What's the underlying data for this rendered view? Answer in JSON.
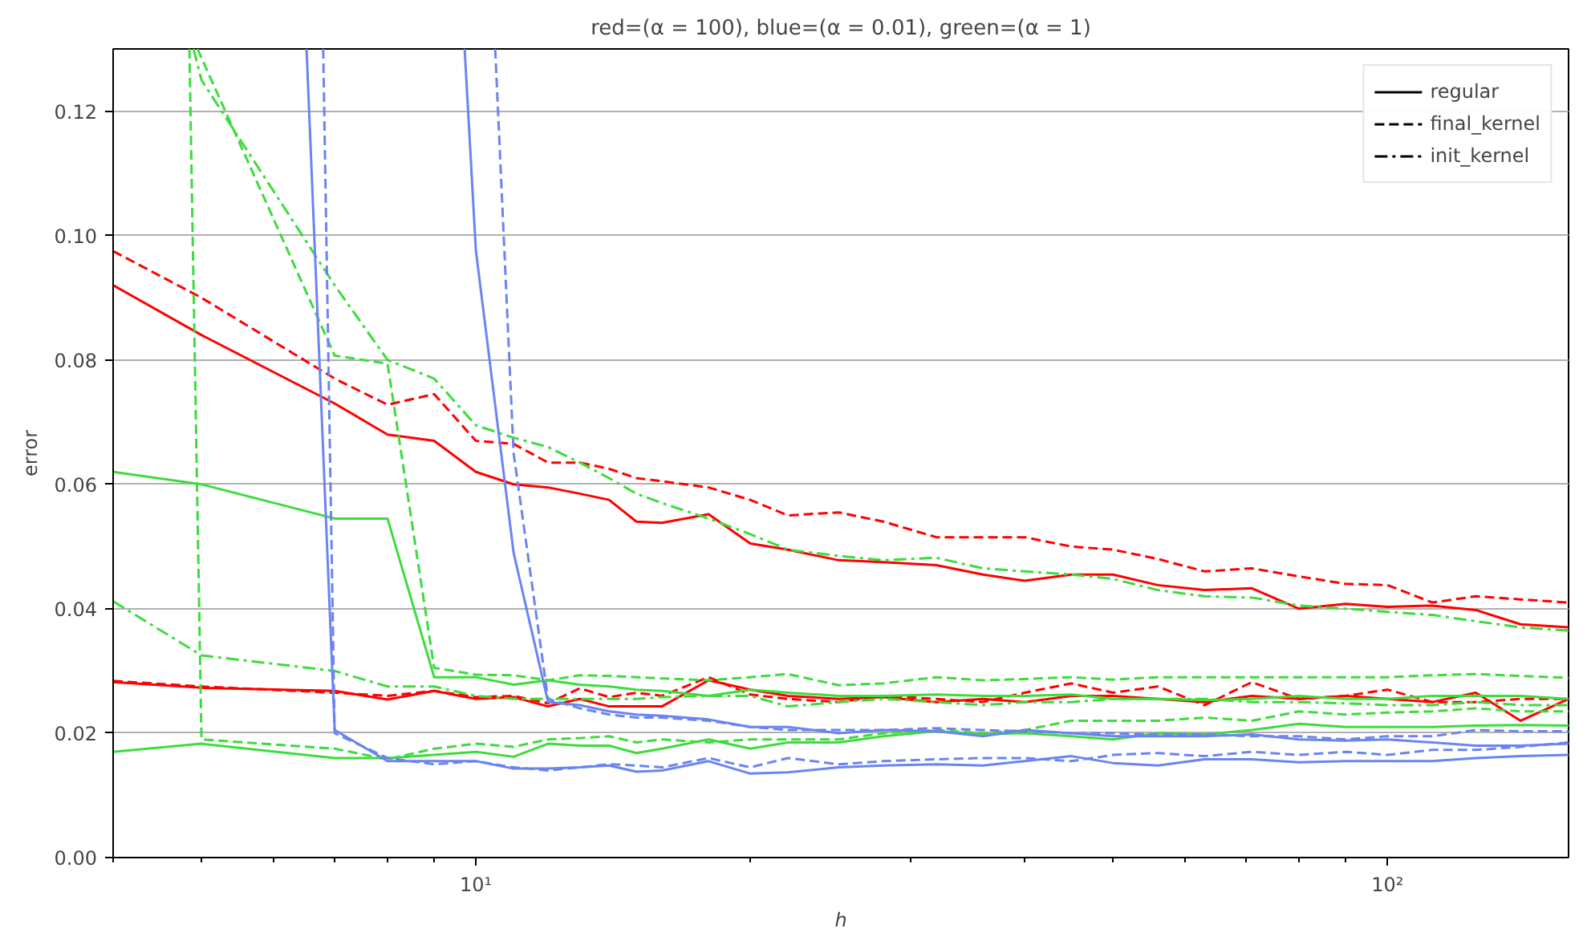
{
  "chart_data": {
    "type": "line",
    "title": "red=(α = 100), blue=(α = 0.01), green=(α = 1)",
    "xlabel": "h",
    "ylabel": "error",
    "log": "x",
    "grid": "y",
    "legend": "top right",
    "xlim": [
      4,
      158
    ],
    "ylim": [
      0,
      0.13
    ],
    "xticks": [
      {
        "value": 4,
        "label": null
      },
      {
        "value": 5,
        "label": null
      },
      {
        "value": 6,
        "label": null
      },
      {
        "value": 7,
        "label": null
      },
      {
        "value": 8,
        "label": null
      },
      {
        "value": 9,
        "label": null
      },
      {
        "value": 10,
        "label": "10¹"
      },
      {
        "value": 20,
        "label": null
      },
      {
        "value": 30,
        "label": null
      },
      {
        "value": 40,
        "label": null
      },
      {
        "value": 50,
        "label": null
      },
      {
        "value": 60,
        "label": null
      },
      {
        "value": 70,
        "label": null
      },
      {
        "value": 80,
        "label": null
      },
      {
        "value": 90,
        "label": null
      },
      {
        "value": 100,
        "label": "10²"
      }
    ],
    "yticks": [
      {
        "value": 0,
        "label": "0.00"
      },
      {
        "value": 0.02,
        "label": "0.02"
      },
      {
        "value": 0.04,
        "label": "0.04"
      },
      {
        "value": 0.06,
        "label": "0.06"
      },
      {
        "value": 0.08,
        "label": "0.08"
      },
      {
        "value": 0.1,
        "label": "0.10"
      },
      {
        "value": 0.12,
        "label": "0.12"
      }
    ],
    "x": [
      4,
      5,
      7,
      8,
      9,
      10,
      11,
      12,
      13,
      14,
      15,
      16,
      18,
      20,
      22,
      25,
      28,
      32,
      36,
      40,
      45,
      50,
      56,
      63,
      71,
      80,
      90,
      100,
      112,
      125,
      140,
      158
    ],
    "series": [
      {
        "color": "#ff0000",
        "line_style": "solid",
        "values": [
          0.092,
          0.084,
          0.073,
          0.068,
          0.067,
          0.062,
          0.06,
          0.0595,
          0.0585,
          0.0575,
          0.054,
          0.0538,
          0.0552,
          0.0505,
          0.0495,
          0.0478,
          0.0475,
          0.047,
          0.0455,
          0.0445,
          0.0455,
          0.0455,
          0.0438,
          0.043,
          0.0433,
          0.04,
          0.0408,
          0.0403,
          0.0405,
          0.0398,
          0.0375,
          0.037
        ]
      },
      {
        "color": "#ff0000",
        "line_style": "dashed",
        "values": [
          0.0975,
          0.09,
          0.077,
          0.0728,
          0.0745,
          0.067,
          0.0665,
          0.0635,
          0.0635,
          0.0625,
          0.061,
          0.0605,
          0.0595,
          0.0575,
          0.055,
          0.0555,
          0.054,
          0.0515,
          0.0515,
          0.0515,
          0.05,
          0.0495,
          0.048,
          0.046,
          0.0465,
          0.0452,
          0.044,
          0.0438,
          0.041,
          0.042,
          0.0415,
          0.041
        ]
      },
      {
        "color": "#ff0000",
        "line_style": "solid",
        "values": [
          0.0282,
          0.0273,
          0.0268,
          0.0254,
          0.0268,
          0.0255,
          0.0258,
          0.0243,
          0.0255,
          0.0243,
          0.0243,
          0.0243,
          0.0285,
          0.027,
          0.026,
          0.0255,
          0.0258,
          0.025,
          0.0255,
          0.025,
          0.026,
          0.026,
          0.0255,
          0.025,
          0.026,
          0.0255,
          0.026,
          0.0255,
          0.025,
          0.0265,
          0.022,
          0.0255
        ]
      },
      {
        "color": "#ff0000",
        "line_style": "dashed",
        "values": [
          0.0284,
          0.0275,
          0.0265,
          0.026,
          0.0268,
          0.0258,
          0.026,
          0.0248,
          0.0272,
          0.0258,
          0.0265,
          0.026,
          0.029,
          0.0262,
          0.0255,
          0.025,
          0.026,
          0.0255,
          0.025,
          0.0265,
          0.028,
          0.0265,
          0.0275,
          0.0245,
          0.0282,
          0.0255,
          0.026,
          0.027,
          0.025,
          0.025,
          0.0255,
          0.0255
        ]
      },
      {
        "color": "#3ddc3d",
        "line_style": "solid",
        "values": [
          0.062,
          0.06,
          0.0545,
          0.0545,
          0.029,
          0.029,
          0.0278,
          0.0285,
          0.0278,
          0.0275,
          0.027,
          0.0268,
          0.026,
          0.027,
          0.0265,
          0.026,
          0.026,
          0.0262,
          0.026,
          0.026,
          0.0262,
          0.0255,
          0.0255,
          0.0253,
          0.0255,
          0.026,
          0.0255,
          0.0255,
          0.026,
          0.026,
          0.026,
          0.0255
        ]
      },
      {
        "color": "#3ddc3d",
        "line_style": "solid",
        "values": [
          0.017,
          0.0183,
          0.016,
          0.016,
          0.0165,
          0.017,
          0.0162,
          0.0183,
          0.018,
          0.018,
          0.0168,
          0.0175,
          0.019,
          0.0175,
          0.0185,
          0.0185,
          0.0195,
          0.0203,
          0.0198,
          0.02,
          0.0195,
          0.019,
          0.02,
          0.0198,
          0.0205,
          0.0215,
          0.021,
          0.021,
          0.021,
          0.0212,
          0.0213,
          0.0212
        ]
      },
      {
        "color": "#3ddc3d",
        "line_style": "dashdot",
        "values": [
          0.0412,
          0.0325,
          0.03,
          0.0275,
          0.0275,
          0.026,
          0.0255,
          0.0255,
          0.0255,
          0.0255,
          0.0255,
          0.0258,
          0.026,
          0.026,
          0.0243,
          0.025,
          0.0255,
          0.025,
          0.0245,
          0.025,
          0.025,
          0.0255,
          0.0255,
          0.0255,
          0.025,
          0.025,
          0.0248,
          0.0245,
          0.0245,
          0.025,
          0.0245,
          0.0245
        ]
      },
      {
        "color": "#3ddc3d",
        "line_style": "dashdot",
        "x": [
          4.9,
          5,
          7,
          8,
          9,
          10,
          11,
          12,
          13,
          14,
          15,
          16,
          18,
          20,
          22,
          25,
          28,
          32,
          36,
          40,
          45,
          50,
          56,
          63,
          71,
          80,
          90,
          100,
          112,
          125,
          140,
          158
        ],
        "values": [
          0.13,
          0.125,
          0.092,
          0.08,
          0.077,
          0.0695,
          0.0675,
          0.066,
          0.0635,
          0.061,
          0.0585,
          0.057,
          0.0545,
          0.052,
          0.0495,
          0.0485,
          0.0478,
          0.0482,
          0.0465,
          0.046,
          0.0455,
          0.0448,
          0.043,
          0.042,
          0.0418,
          0.0405,
          0.04,
          0.0395,
          0.039,
          0.038,
          0.037,
          0.0365
        ]
      },
      {
        "color": "#3ddc3d",
        "line_style": "dashed",
        "x": [
          4.85,
          5,
          7,
          8,
          9,
          10,
          11,
          12,
          13,
          14,
          15,
          16,
          18,
          20,
          22,
          25,
          28,
          32,
          36,
          40,
          45,
          50,
          56,
          63,
          71,
          80,
          90,
          100,
          112,
          125,
          140,
          158
        ],
        "values": [
          0.13,
          0.019,
          0.0175,
          0.0158,
          0.0175,
          0.0183,
          0.0178,
          0.019,
          0.0192,
          0.0195,
          0.0185,
          0.019,
          0.0185,
          0.019,
          0.019,
          0.019,
          0.02,
          0.0205,
          0.02,
          0.0205,
          0.022,
          0.022,
          0.022,
          0.0225,
          0.022,
          0.0235,
          0.023,
          0.0233,
          0.0235,
          0.024,
          0.0235,
          0.0235
        ]
      },
      {
        "color": "#3ddc3d",
        "line_style": "dashed",
        "x": [
          4.95,
          7,
          8,
          9,
          10,
          11,
          12,
          13,
          14,
          15,
          16,
          18,
          20,
          22,
          25,
          28,
          32,
          36,
          40,
          45,
          50,
          56,
          63,
          71,
          80,
          90,
          100,
          112,
          125,
          140,
          158
        ],
        "values": [
          0.13,
          0.0807,
          0.0794,
          0.0305,
          0.0294,
          0.0293,
          0.0285,
          0.0293,
          0.0292,
          0.029,
          0.0288,
          0.0285,
          0.029,
          0.0295,
          0.0277,
          0.028,
          0.029,
          0.0285,
          0.0287,
          0.029,
          0.0286,
          0.029,
          0.029,
          0.029,
          0.029,
          0.029,
          0.029,
          0.0293,
          0.0295,
          0.0292,
          0.0289
        ]
      },
      {
        "color": "#6b84f1",
        "line_style": "solid",
        "x": [
          6.52,
          7,
          8,
          9,
          10,
          11,
          12,
          13,
          14,
          15,
          16,
          18,
          20,
          22,
          25,
          28,
          32,
          36,
          40,
          45,
          50,
          56,
          63,
          71,
          80,
          90,
          100,
          112,
          125,
          140,
          158
        ],
        "values": [
          0.13,
          0.0205,
          0.0155,
          0.0155,
          0.0155,
          0.0143,
          0.0143,
          0.0145,
          0.0148,
          0.0138,
          0.014,
          0.0155,
          0.0135,
          0.0137,
          0.0145,
          0.0148,
          0.015,
          0.0148,
          0.0155,
          0.0163,
          0.0152,
          0.0148,
          0.0158,
          0.0158,
          0.0153,
          0.0155,
          0.0155,
          0.0155,
          0.016,
          0.0163,
          0.0165
        ]
      },
      {
        "color": "#6b84f1",
        "line_style": "dashed",
        "x": [
          6.8,
          7,
          8,
          9,
          10,
          11,
          12,
          13,
          14,
          15,
          16,
          18,
          20,
          22,
          25,
          28,
          32,
          36,
          40,
          45,
          50,
          56,
          63,
          71,
          80,
          90,
          100,
          112,
          125,
          140,
          158
        ],
        "values": [
          0.13,
          0.02,
          0.016,
          0.015,
          0.0155,
          0.0145,
          0.014,
          0.0145,
          0.015,
          0.0148,
          0.0145,
          0.016,
          0.0145,
          0.016,
          0.015,
          0.0155,
          0.0158,
          0.016,
          0.016,
          0.0155,
          0.0165,
          0.0168,
          0.0163,
          0.017,
          0.0165,
          0.017,
          0.0165,
          0.0173,
          0.0173,
          0.0178,
          0.0185
        ]
      },
      {
        "color": "#6b84f1",
        "line_style": "solid",
        "x": [
          9.72,
          10,
          11,
          12,
          13,
          14,
          15,
          16,
          18,
          20,
          22,
          25,
          28,
          32,
          36,
          40,
          45,
          50,
          56,
          63,
          71,
          80,
          90,
          100,
          112,
          125,
          140,
          158
        ],
        "values": [
          0.13,
          0.0976,
          0.049,
          0.025,
          0.0245,
          0.0235,
          0.023,
          0.0228,
          0.0222,
          0.021,
          0.021,
          0.02,
          0.0205,
          0.0203,
          0.0195,
          0.0205,
          0.02,
          0.0195,
          0.0195,
          0.0195,
          0.0198,
          0.019,
          0.0188,
          0.019,
          0.0185,
          0.018,
          0.018,
          0.0183
        ]
      },
      {
        "color": "#6b84f1",
        "line_style": "dashed",
        "x": [
          10.5,
          11,
          12,
          13,
          14,
          15,
          16,
          18,
          20,
          22,
          25,
          28,
          32,
          36,
          40,
          45,
          50,
          56,
          63,
          71,
          80,
          90,
          100,
          112,
          125,
          140,
          158
        ],
        "values": [
          0.13,
          0.065,
          0.0255,
          0.024,
          0.023,
          0.0225,
          0.0225,
          0.022,
          0.021,
          0.0205,
          0.0205,
          0.0205,
          0.0208,
          0.0205,
          0.0203,
          0.02,
          0.02,
          0.0198,
          0.0198,
          0.0195,
          0.0195,
          0.019,
          0.0195,
          0.0195,
          0.0205,
          0.0203,
          0.0203
        ]
      },
      {
        "name": "regular",
        "color": "#000000",
        "line_style": "solid",
        "values": [
          null,
          null,
          null,
          null,
          null,
          null,
          null,
          null,
          null,
          null,
          null,
          null,
          null,
          null,
          null,
          null,
          null,
          null,
          null,
          null,
          null,
          null,
          null,
          null,
          null,
          null,
          null,
          null,
          null,
          null,
          null,
          null
        ]
      },
      {
        "name": "final_kernel",
        "color": "#000000",
        "line_style": "dashed",
        "values": [
          null,
          null,
          null,
          null,
          null,
          null,
          null,
          null,
          null,
          null,
          null,
          null,
          null,
          null,
          null,
          null,
          null,
          null,
          null,
          null,
          null,
          null,
          null,
          null,
          null,
          null,
          null,
          null,
          null,
          null,
          null,
          null
        ]
      },
      {
        "name": "init_kernel",
        "color": "#000000",
        "line_style": "dashdot",
        "values": [
          null,
          null,
          null,
          null,
          null,
          null,
          null,
          null,
          null,
          null,
          null,
          null,
          null,
          null,
          null,
          null,
          null,
          null,
          null,
          null,
          null,
          null,
          null,
          null,
          null,
          null,
          null,
          null,
          null,
          null,
          null,
          null
        ]
      }
    ]
  }
}
